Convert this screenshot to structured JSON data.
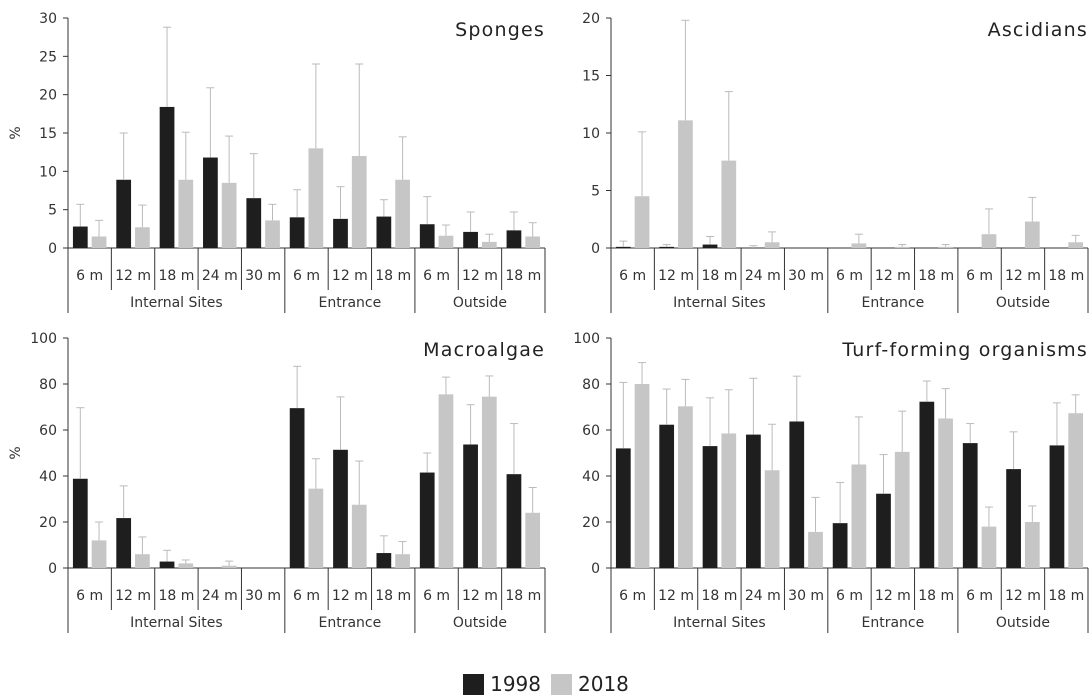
{
  "colors": {
    "s1998": "#1e1e1e",
    "s2018": "#c6c6c6",
    "axis": "#333333",
    "errorbar": "#bbbbbb"
  },
  "legend": {
    "s1998_label": "1998",
    "s2018_label": "2018"
  },
  "chart_data": [
    {
      "type": "bar",
      "title": "Sponges",
      "ylabel": "%",
      "ylim": [
        0,
        30
      ],
      "yticks": [
        0,
        5,
        10,
        15,
        20,
        25,
        30
      ],
      "groups": [
        {
          "label": "Internal Sites",
          "categories": [
            "6 m",
            "12 m",
            "18 m",
            "24 m",
            "30 m"
          ]
        },
        {
          "label": "Entrance",
          "categories": [
            "6 m",
            "12 m",
            "18 m"
          ]
        },
        {
          "label": "Outside",
          "categories": [
            "6 m",
            "12 m",
            "18 m"
          ]
        }
      ],
      "series": [
        {
          "name": "1998",
          "values": [
            2.8,
            8.9,
            18.4,
            11.8,
            6.5,
            4.0,
            3.8,
            4.1,
            3.1,
            2.1,
            2.3
          ],
          "errors": [
            2.9,
            6.1,
            10.4,
            9.1,
            5.8,
            3.6,
            4.2,
            2.2,
            3.6,
            2.6,
            2.4
          ]
        },
        {
          "name": "2018",
          "values": [
            1.5,
            2.7,
            8.9,
            8.5,
            3.6,
            13.0,
            12.0,
            8.9,
            1.6,
            0.8,
            1.5
          ],
          "errors": [
            2.1,
            2.9,
            6.2,
            6.1,
            2.1,
            11.0,
            12.0,
            5.6,
            1.4,
            1.0,
            1.8
          ]
        }
      ]
    },
    {
      "type": "bar",
      "title": "Ascidians",
      "ylabel": "",
      "ylim": [
        0,
        20
      ],
      "yticks": [
        0,
        5,
        10,
        15,
        20
      ],
      "groups": [
        {
          "label": "Internal Sites",
          "categories": [
            "6 m",
            "12 m",
            "18 m",
            "24 m",
            "30 m"
          ]
        },
        {
          "label": "Entrance",
          "categories": [
            "6 m",
            "12 m",
            "18 m"
          ]
        },
        {
          "label": "Outside",
          "categories": [
            "6 m",
            "12 m",
            "18 m"
          ]
        }
      ],
      "series": [
        {
          "name": "1998",
          "values": [
            0.1,
            0.1,
            0.3,
            0.0,
            0.0,
            0.0,
            0.0,
            0.0,
            0.0,
            0.0,
            0.0
          ],
          "errors": [
            0.5,
            0.2,
            0.7,
            0.2,
            0.0,
            0.0,
            0.0,
            0.0,
            0.0,
            0.0,
            0.0
          ]
        },
        {
          "name": "2018",
          "values": [
            4.5,
            11.1,
            7.6,
            0.5,
            0.0,
            0.4,
            0.1,
            0.1,
            1.2,
            2.3,
            0.5
          ],
          "errors": [
            5.6,
            8.7,
            6.0,
            0.9,
            0.0,
            0.8,
            0.2,
            0.2,
            2.2,
            2.1,
            0.6
          ]
        }
      ]
    },
    {
      "type": "bar",
      "title": "Macroalgae",
      "ylabel": "%",
      "ylim": [
        0,
        100
      ],
      "yticks": [
        0,
        20,
        40,
        60,
        80,
        100
      ],
      "groups": [
        {
          "label": "Internal Sites",
          "categories": [
            "6 m",
            "12 m",
            "18 m",
            "24 m",
            "30 m"
          ]
        },
        {
          "label": "Entrance",
          "categories": [
            "6 m",
            "12 m",
            "18 m"
          ]
        },
        {
          "label": "Outside",
          "categories": [
            "6 m",
            "12 m",
            "18 m"
          ]
        }
      ],
      "series": [
        {
          "name": "1998",
          "values": [
            38.8,
            21.7,
            2.8,
            0.0,
            0.0,
            69.5,
            51.4,
            6.5,
            41.5,
            53.7,
            40.8
          ],
          "errors": [
            30.9,
            14.0,
            4.9,
            0.0,
            0.0,
            18.2,
            23.0,
            7.5,
            8.5,
            17.3,
            22.0
          ]
        },
        {
          "name": "2018",
          "values": [
            12.0,
            6.0,
            2.0,
            1.0,
            0.0,
            34.5,
            27.5,
            6.0,
            75.5,
            74.5,
            24.0
          ],
          "errors": [
            8.0,
            7.5,
            1.5,
            2.0,
            0.0,
            13.0,
            19.0,
            5.5,
            7.5,
            9.0,
            11.0
          ]
        }
      ]
    },
    {
      "type": "bar",
      "title": "Turf-forming organisms",
      "ylabel": "",
      "ylim": [
        0,
        100
      ],
      "yticks": [
        0,
        20,
        40,
        60,
        80,
        100
      ],
      "groups": [
        {
          "label": "Internal Sites",
          "categories": [
            "6 m",
            "12 m",
            "18 m",
            "24 m",
            "30 m"
          ]
        },
        {
          "label": "Entrance",
          "categories": [
            "6 m",
            "12 m",
            "18 m"
          ]
        },
        {
          "label": "Outside",
          "categories": [
            "6 m",
            "12 m",
            "18 m"
          ]
        }
      ],
      "series": [
        {
          "name": "1998",
          "values": [
            52.0,
            62.3,
            53.0,
            58.0,
            63.7,
            19.5,
            32.3,
            72.3,
            54.3,
            43.0,
            53.3
          ],
          "errors": [
            28.7,
            15.5,
            21.0,
            24.5,
            19.7,
            17.7,
            17.0,
            9.0,
            8.5,
            16.2,
            18.5
          ]
        },
        {
          "name": "2018",
          "values": [
            80.0,
            70.3,
            58.5,
            42.5,
            15.7,
            45.0,
            50.5,
            65.0,
            18.0,
            20.0,
            67.3
          ],
          "errors": [
            9.3,
            11.7,
            19.0,
            20.0,
            15.0,
            20.7,
            17.7,
            13.0,
            8.5,
            7.0,
            8.0
          ]
        }
      ]
    }
  ]
}
